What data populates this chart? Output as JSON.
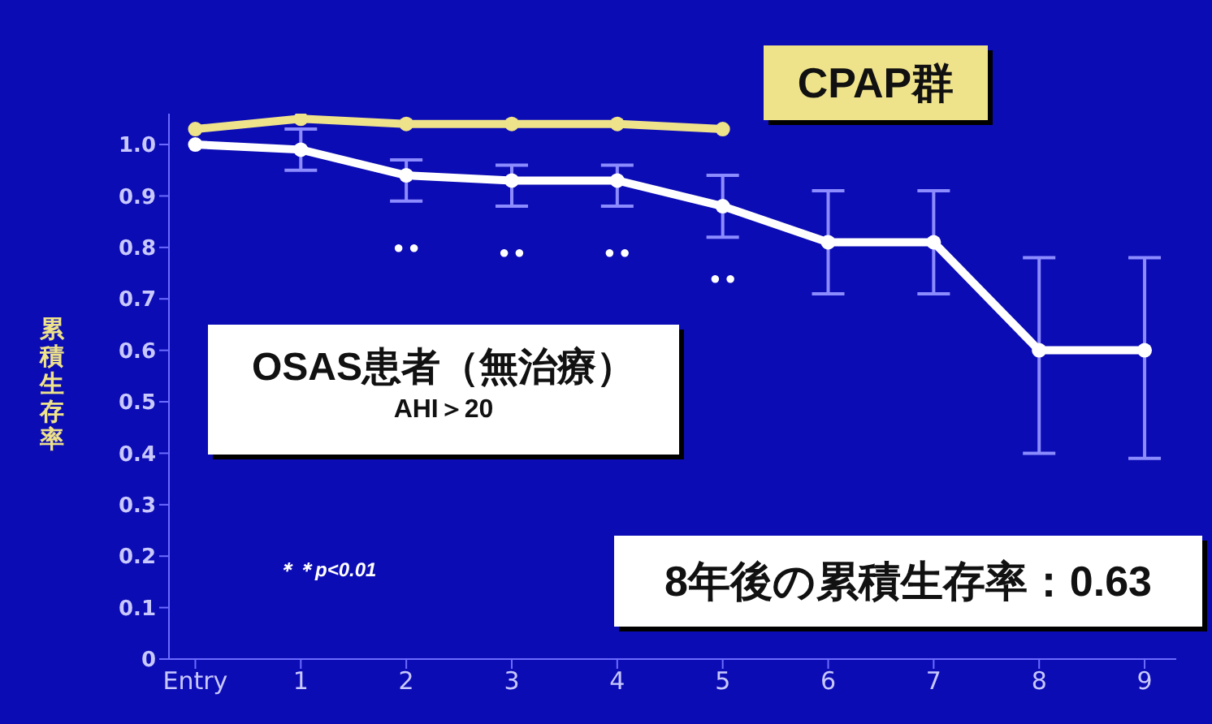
{
  "chart_data": {
    "type": "line",
    "ylabel": "累積生存率",
    "categories": [
      "Entry",
      "1",
      "2",
      "3",
      "4",
      "5",
      "6",
      "7",
      "8",
      "9"
    ],
    "series": [
      {
        "name": "CPAP群",
        "color": "#eee28a",
        "values": [
          1.03,
          1.05,
          1.04,
          1.04,
          1.04,
          1.03,
          null,
          null,
          null,
          null
        ]
      },
      {
        "name": "OSAS患者（無治療）",
        "color": "#ffffff",
        "values": [
          1.0,
          0.99,
          0.94,
          0.93,
          0.93,
          0.88,
          0.81,
          0.81,
          0.6,
          0.6
        ],
        "errors": [
          null,
          [
            0.95,
            1.03
          ],
          [
            0.89,
            0.97
          ],
          [
            0.88,
            0.96
          ],
          [
            0.88,
            0.96
          ],
          [
            0.82,
            0.94
          ],
          [
            0.71,
            0.91
          ],
          [
            0.71,
            0.91
          ],
          [
            0.4,
            0.78
          ],
          [
            0.39,
            0.78
          ]
        ]
      }
    ],
    "ylim": [
      0,
      1.06
    ],
    "yticks": [
      0,
      0.1,
      0.2,
      0.3,
      0.4,
      0.5,
      0.6,
      0.7,
      0.8,
      0.9,
      {
        "value": 1,
        "label": "1.0"
      }
    ],
    "annotations": [
      "AHI＞20",
      "＊＊p<0.01",
      "8年後の累積生存率：0.63",
      "● ●",
      "● ●",
      "● ●",
      "● ●"
    ],
    "marker": "circle",
    "line_style": "solid",
    "grid": false,
    "legend": false
  }
}
